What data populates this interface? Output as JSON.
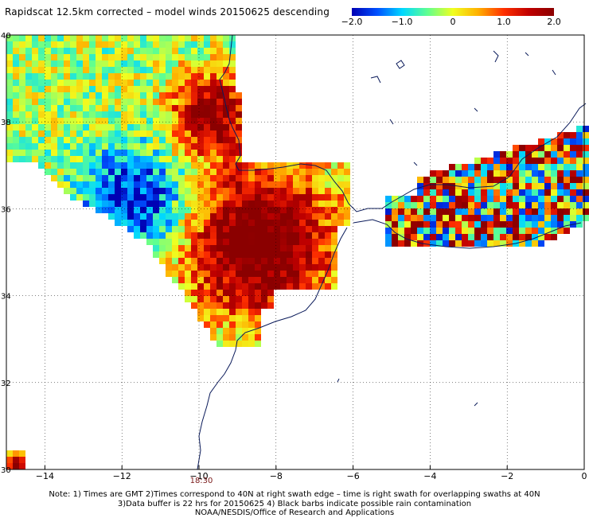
{
  "title": "Rapidscat 12.5km corrected – model winds 20150625 descending",
  "colorbar": {
    "labels": [
      "−2.0",
      "−1.0",
      "0",
      "1.0",
      "2.0"
    ],
    "values": [
      -2.0,
      -1.0,
      0,
      1.0,
      2.0
    ],
    "colors": [
      "#0000b4",
      "#0050ff",
      "#00d8ff",
      "#60ff90",
      "#f0ff20",
      "#ffb000",
      "#ff3000",
      "#c00000",
      "#8b0000"
    ]
  },
  "axes": {
    "lon_ticks": [
      "−14",
      "−12",
      "−10",
      "−8",
      "−6",
      "−4",
      "−2",
      "0"
    ],
    "lon_values": [
      -14,
      -12,
      -10,
      -8,
      -6,
      -4,
      -2,
      0
    ],
    "lat_ticks": [
      "40",
      "38",
      "36",
      "34",
      "32",
      "30"
    ],
    "lat_values": [
      40,
      38,
      36,
      34,
      32,
      30
    ]
  },
  "swath_time": "18:30",
  "notes": [
    "Note: 1) Times are GMT 2)Times correspond to 40N at right swath edge – time is right swath for overlapping swaths at 40N",
    "3)Data buffer is 22 hrs for 20150625 4) Black barbs indicate possible rain contamination",
    "NOAA/NESDIS/Office of Research and Applications"
  ],
  "colors": {
    "coastline": "#0a1a5a",
    "grid": "#000000",
    "background": "#ffffff"
  }
}
